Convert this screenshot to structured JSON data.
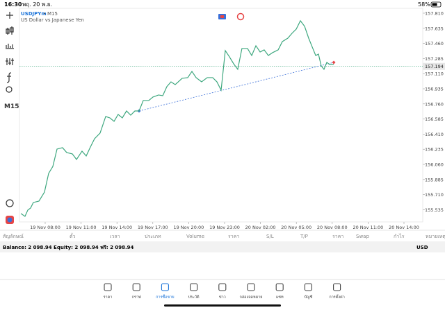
{
  "status_bar": {
    "time": "16:30",
    "date": "พฤ. 20 พ.ย.",
    "battery": "58%"
  },
  "sidebar": {
    "timeframe": "M15"
  },
  "chart": {
    "type": "line",
    "symbol": "USDJPYm",
    "period": "M15",
    "description": "US Dollar vs Japanese Yen",
    "color": "#3da77e",
    "x": [
      -2.03,
      -1.69,
      -1.45,
      -1.22,
      -0.99,
      -0.52,
      -0.06,
      0.29,
      0.64,
      0.99,
      1.45,
      1.8,
      2.27,
      2.62,
      3.08,
      3.43,
      3.78,
      4.13,
      4.59,
      5.06,
      5.41,
      5.76,
      6.1,
      6.45,
      6.8,
      7.15,
      7.5,
      7.85,
      8.2,
      8.66,
      9.01,
      9.48,
      9.83,
      10.17,
      10.52,
      10.87,
      11.45,
      11.92,
      12.27,
      12.62,
      13.08,
      13.55,
      14.01,
      14.36,
      14.71,
      15.06,
      15.41,
      15.76,
      16.1,
      16.45,
      16.92,
      17.27,
      17.62,
      17.97,
      18.31,
      18.66,
      19.01,
      19.48,
      19.83,
      20.29,
      20.64,
      20.99,
      21.34,
      21.69,
      22.03,
      22.38,
      22.62,
      22.85,
      23.08,
      23.31,
      23.55,
      23.78,
      24.13
    ],
    "values": [
      155.491,
      155.458,
      155.531,
      155.555,
      155.619,
      155.635,
      155.739,
      155.956,
      156.036,
      156.237,
      156.253,
      156.197,
      156.181,
      156.117,
      156.213,
      156.157,
      156.261,
      156.357,
      156.422,
      156.614,
      156.598,
      156.558,
      156.638,
      156.598,
      156.678,
      156.63,
      156.678,
      156.678,
      156.799,
      156.799,
      156.839,
      156.863,
      156.855,
      156.959,
      157.015,
      156.983,
      157.056,
      157.064,
      157.136,
      157.064,
      157.015,
      157.064,
      157.064,
      157.015,
      156.919,
      157.377,
      157.304,
      157.224,
      157.16,
      157.401,
      157.401,
      157.32,
      157.433,
      157.361,
      157.385,
      157.32,
      157.353,
      157.385,
      157.481,
      157.521,
      157.577,
      157.625,
      157.722,
      157.658,
      157.521,
      157.401,
      157.32,
      157.336,
      157.2,
      157.16,
      157.24,
      157.216,
      157.216
    ],
    "xlim": [
      -2.15,
      31.57
    ],
    "ylim": [
      155.394,
      157.866
    ],
    "xticks": [
      {
        "value": 0,
        "label": "19 Nov 08:00"
      },
      {
        "value": 3,
        "label": "19 Nov 11:00"
      },
      {
        "value": 6,
        "label": "19 Nov 14:00"
      },
      {
        "value": 9,
        "label": "19 Nov 17:00"
      },
      {
        "value": 12,
        "label": "19 Nov 20:00"
      },
      {
        "value": 15,
        "label": "19 Nov 23:00"
      },
      {
        "value": 18,
        "label": "20 Nov 02:00"
      },
      {
        "value": 21,
        "label": "20 Nov 05:00"
      },
      {
        "value": 24,
        "label": "20 Nov 08:00"
      },
      {
        "value": 27,
        "label": "20 Nov 11:00"
      },
      {
        "value": 30,
        "label": "20 Nov 14:00"
      }
    ],
    "yticks": [
      {
        "value": 157.81,
        "label": "157.810"
      },
      {
        "value": 157.635,
        "label": "157.635"
      },
      {
        "value": 157.46,
        "label": "157.460"
      },
      {
        "value": 157.285,
        "label": "157.285"
      },
      {
        "value": 157.11,
        "label": "157.110"
      },
      {
        "value": 156.935,
        "label": "156.935"
      },
      {
        "value": 156.76,
        "label": "156.760"
      },
      {
        "value": 156.585,
        "label": "156.585"
      },
      {
        "value": 156.41,
        "label": "156.410"
      },
      {
        "value": 156.235,
        "label": "156.235"
      },
      {
        "value": 156.06,
        "label": "156.060"
      },
      {
        "value": 155.885,
        "label": "155.885"
      },
      {
        "value": 155.71,
        "label": "155.710"
      },
      {
        "value": 155.535,
        "label": "155.535"
      }
    ],
    "current_price": 157.194,
    "trendline": {
      "x": [
        7.85,
        24.13
      ],
      "values": [
        156.678,
        157.24
      ]
    }
  },
  "table": {
    "columns": [
      "สัญลักษณ์",
      "ตั๋ว",
      "เวลา",
      "ประเภท",
      "Volume",
      "ราคา",
      "S/L",
      "T/P",
      "ราคา",
      "Swap",
      "กำไร",
      "หมายเหตุ"
    ]
  },
  "account": {
    "summary": "Balance: 2 098.94 Equity: 2 098.94 ฟรี: 2 098.94",
    "currency": "USD"
  },
  "tabs": [
    "ราคา",
    "กราฟ",
    "การซื้อขาย",
    "ประวัติ",
    "ข่าว",
    "กล่องจดหมาย",
    "แชท",
    "บัญชี",
    "การตั้งค่า"
  ]
}
